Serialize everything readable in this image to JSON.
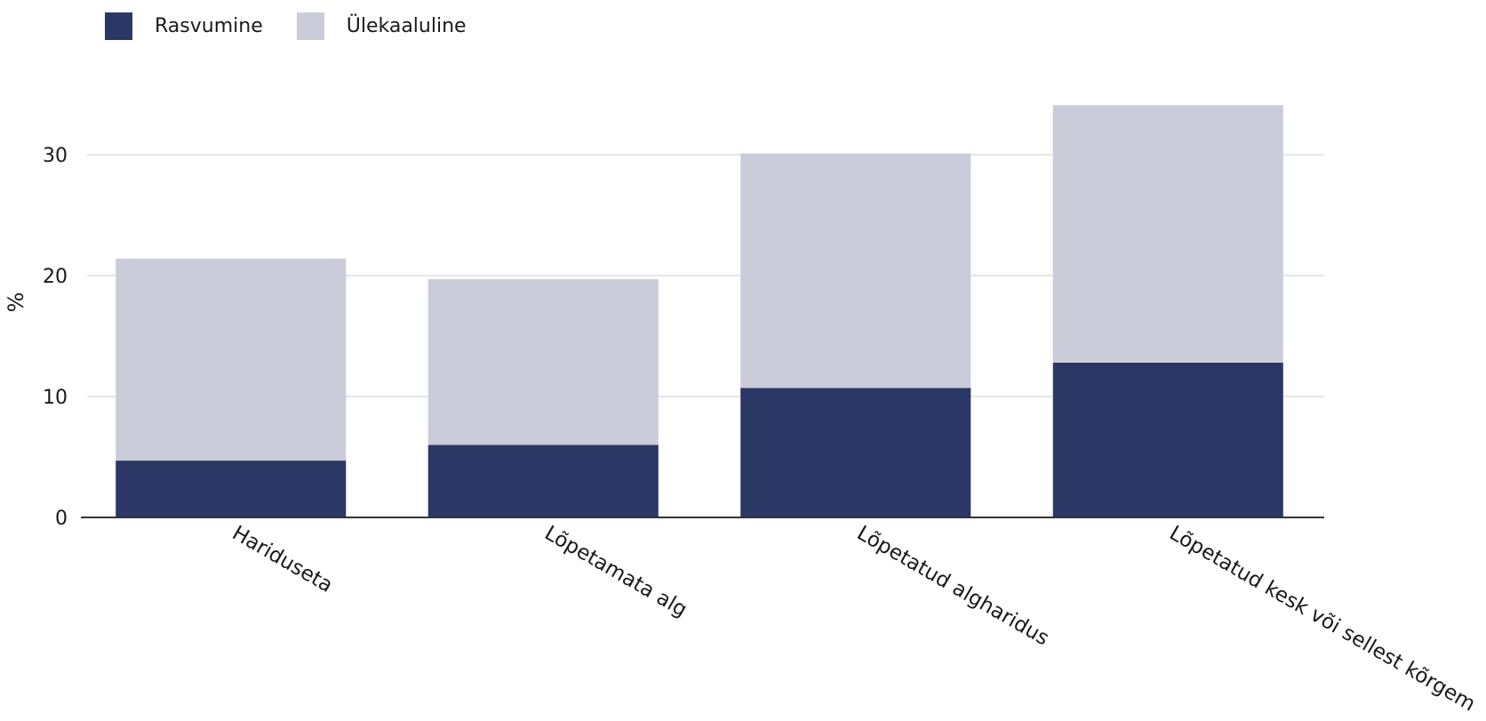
{
  "chart_data": {
    "type": "bar",
    "stacked": true,
    "categories": [
      "Hariduseta",
      "Lõpetamata alg",
      "Lõpetatud algharidus",
      "Lõpetatud kesk või sellest kõrgem"
    ],
    "series": [
      {
        "name": "Rasvumine",
        "color": "#2b3865",
        "values": [
          4.7,
          6.0,
          10.7,
          12.8
        ]
      },
      {
        "name": "Ülekaaluline",
        "color": "#cacdd9",
        "values": [
          16.7,
          13.7,
          19.4,
          21.3
        ]
      }
    ],
    "ylabel": "%",
    "ylim": [
      0,
      34.5
    ],
    "yticks": [
      0,
      10,
      20,
      30
    ],
    "grid": true,
    "legend_position": "top-left"
  }
}
